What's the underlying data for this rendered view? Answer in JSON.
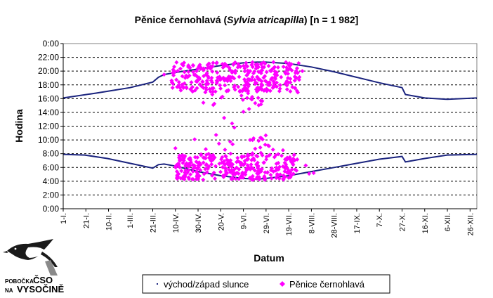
{
  "chart_data": {
    "type": "scatter",
    "title": {
      "prefix": "Pěnice černohlavá (",
      "species": "Sylvia atricapilla",
      "suffix": ") [n = 1 982]"
    },
    "xlabel": "Datum",
    "ylabel": "Hodina",
    "y_ticks": [
      "0:00",
      "2:00",
      "4:00",
      "6:00",
      "8:00",
      "10:00",
      "12:00",
      "14:00",
      "16:00",
      "18:00",
      "20:00",
      "22:00",
      "0:00"
    ],
    "y_range_hours": [
      0,
      24
    ],
    "x_range_day_of_year": [
      1,
      366
    ],
    "x_tick_labels": [
      "1-I.",
      "21-I.",
      "10-II.",
      "1-III.",
      "21-III.",
      "10-IV.",
      "30-IV.",
      "20-V.",
      "9-VI.",
      "29-VI.",
      "19-VII.",
      "8-VIII.",
      "28-VIII.",
      "17-IX.",
      "7-X.",
      "27-X.",
      "16-XI.",
      "6-XII.",
      "26-XII."
    ],
    "x_tick_days": [
      1,
      21,
      41,
      60,
      80,
      100,
      120,
      140,
      160,
      180,
      200,
      220,
      240,
      260,
      280,
      300,
      320,
      340,
      360
    ],
    "gridlines": "horizontal dashed",
    "legend_position": "bottom",
    "series": [
      {
        "name": "východ/západ slunce",
        "kind": "line",
        "color": "#1a237e",
        "sunset": {
          "x": [
            1,
            30,
            60,
            80,
            85,
            90,
            100,
            120,
            140,
            160,
            172,
            180,
            200,
            220,
            240,
            260,
            280,
            300,
            303,
            320,
            340,
            366
          ],
          "y": [
            16.1,
            16.8,
            17.6,
            18.4,
            19.1,
            19.5,
            19.8,
            20.3,
            20.8,
            21.2,
            21.3,
            21.3,
            21.1,
            20.6,
            19.9,
            19.1,
            18.3,
            17.6,
            16.6,
            16.1,
            15.9,
            16.1
          ]
        },
        "sunrise": {
          "x": [
            1,
            20,
            40,
            60,
            80,
            85,
            90,
            100,
            120,
            140,
            160,
            172,
            180,
            200,
            220,
            240,
            260,
            280,
            300,
            303,
            320,
            340,
            366
          ],
          "y": [
            7.9,
            7.8,
            7.3,
            6.6,
            5.9,
            6.4,
            6.5,
            6.2,
            5.4,
            4.8,
            4.4,
            4.3,
            4.4,
            4.8,
            5.4,
            6.0,
            6.6,
            7.2,
            7.6,
            6.8,
            7.3,
            7.8,
            7.9
          ]
        }
      },
      {
        "name": "Pěnice černohlavá",
        "kind": "scatter",
        "color": "#ff00ff",
        "marker": "diamond",
        "clusters": [
          {
            "x_range": [
              96,
              210
            ],
            "y_range": [
              17.0,
              21.3
            ],
            "count": 320
          },
          {
            "x_range": [
              120,
              180
            ],
            "y_range": [
              15.0,
              18.0
            ],
            "count": 30
          },
          {
            "x_range": [
              100,
              208
            ],
            "y_range": [
              4.2,
              8.0
            ],
            "count": 330
          },
          {
            "x_range": [
              105,
              195
            ],
            "y_range": [
              8.0,
              11.0
            ],
            "count": 25
          }
        ],
        "outliers": {
          "x": [
            90,
            98,
            100,
            143,
            150,
            152,
            160,
            165,
            208,
            212,
            215,
            218,
            222
          ],
          "y": [
            19.5,
            20.2,
            8.8,
            13.2,
            12.4,
            11.8,
            14.1,
            14.5,
            16.9,
            20.0,
            6.3,
            5.1,
            5.2
          ]
        }
      }
    ]
  },
  "legend": {
    "sun_label": "východ/západ slunce",
    "bird_label": "Pěnice černohlavá"
  },
  "logo": {
    "line1_small": "POBOČKA",
    "line1_big": "ČSO",
    "line2_small": "NA",
    "line2_big": "VYSOČINĚ"
  }
}
